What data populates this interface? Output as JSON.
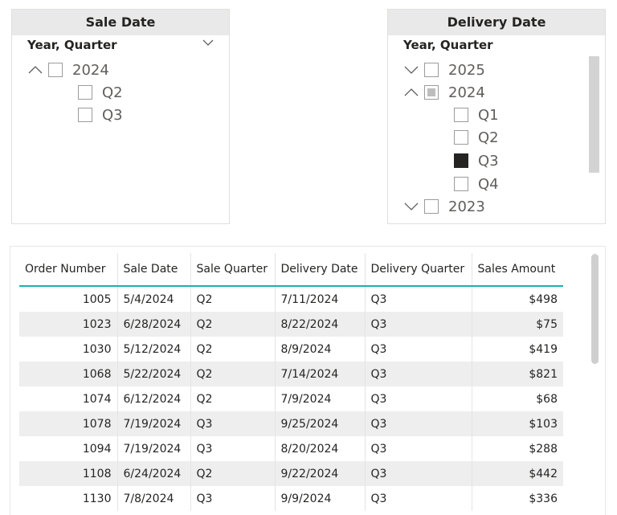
{
  "sale_slicer": {
    "title": "Sale Date",
    "subtitle": "Year, Quarter",
    "nodes": [
      {
        "label": "2024",
        "expanded": true,
        "state": "unchecked"
      },
      {
        "label": "Q2",
        "state": "unchecked"
      },
      {
        "label": "Q3",
        "state": "unchecked"
      }
    ]
  },
  "delivery_slicer": {
    "title": "Delivery Date",
    "subtitle": "Year, Quarter",
    "nodes": [
      {
        "label": "2025",
        "expanded": false,
        "state": "unchecked"
      },
      {
        "label": "2024",
        "expanded": true,
        "state": "partial"
      },
      {
        "label": "Q1",
        "state": "unchecked"
      },
      {
        "label": "Q2",
        "state": "unchecked"
      },
      {
        "label": "Q3",
        "state": "checked"
      },
      {
        "label": "Q4",
        "state": "unchecked"
      },
      {
        "label": "2023",
        "expanded": false,
        "state": "unchecked"
      }
    ]
  },
  "table": {
    "columns": [
      "Order Number",
      "Sale Date",
      "Sale Quarter",
      "Delivery Date",
      "Delivery Quarter",
      "Sales Amount"
    ],
    "rows": [
      [
        "1005",
        "5/4/2024",
        "Q2",
        "7/11/2024",
        "Q3",
        "$498"
      ],
      [
        "1023",
        "6/28/2024",
        "Q2",
        "8/22/2024",
        "Q3",
        "$75"
      ],
      [
        "1030",
        "5/12/2024",
        "Q2",
        "8/9/2024",
        "Q3",
        "$419"
      ],
      [
        "1068",
        "5/22/2024",
        "Q2",
        "7/14/2024",
        "Q3",
        "$821"
      ],
      [
        "1074",
        "6/12/2024",
        "Q2",
        "7/9/2024",
        "Q3",
        "$68"
      ],
      [
        "1078",
        "7/19/2024",
        "Q3",
        "9/25/2024",
        "Q3",
        "$103"
      ],
      [
        "1094",
        "7/19/2024",
        "Q3",
        "8/20/2024",
        "Q3",
        "$288"
      ],
      [
        "1108",
        "6/24/2024",
        "Q2",
        "9/22/2024",
        "Q3",
        "$442"
      ],
      [
        "1130",
        "7/8/2024",
        "Q3",
        "9/9/2024",
        "Q3",
        "$336"
      ]
    ]
  },
  "colors": {
    "header_underline": "#19b3ac",
    "slicer_header_bg": "#e9e9e9",
    "row_alt_bg": "#eeeeee",
    "checked_fill": "#252423"
  }
}
